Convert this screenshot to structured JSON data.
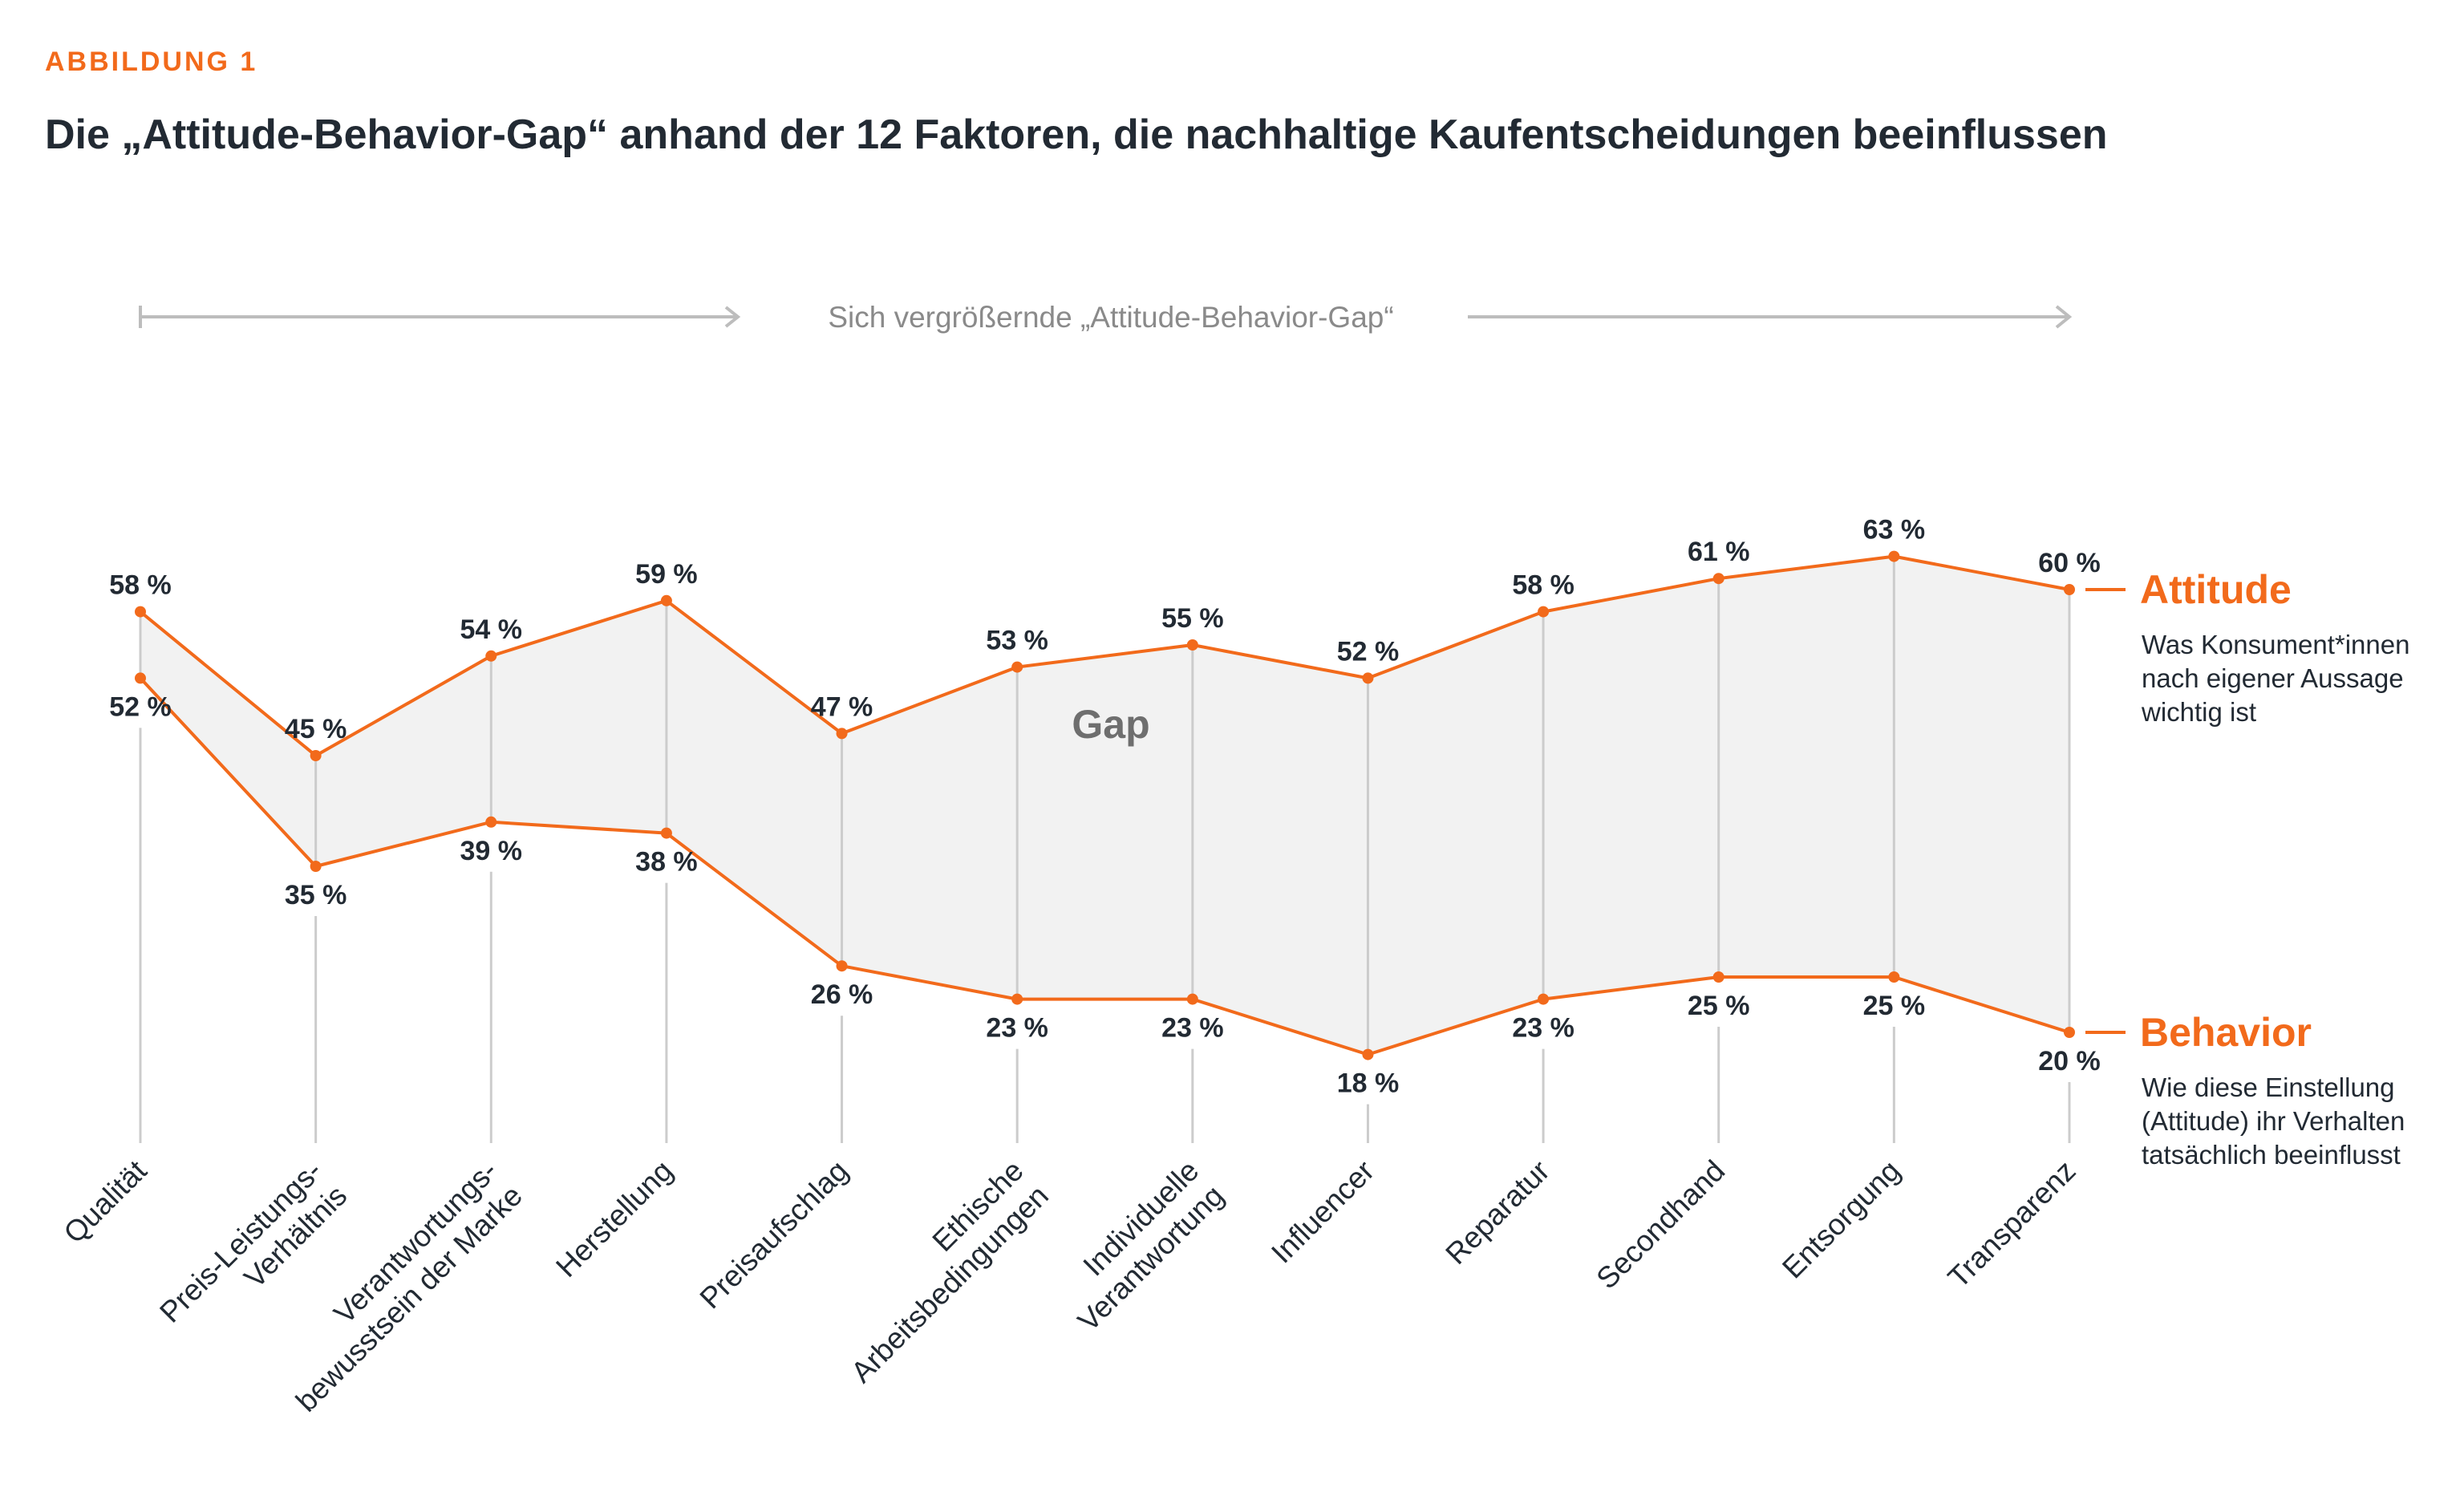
{
  "header": {
    "kicker": "ABBILDUNG 1",
    "title": "Die „Attitude-Behavior-Gap“ anhand der 12 Faktoren, die nachhaltige Kaufentscheidungen beeinflussen"
  },
  "annotation": {
    "arrow_label": "Sich vergrößernde „Attitude-Behavior-Gap“",
    "gap_label": "Gap"
  },
  "legend": {
    "attitude": {
      "title": "Attitude",
      "description": [
        "Was Konsument*innen",
        "nach eigener Aussage",
        "wichtig ist"
      ]
    },
    "behavior": {
      "title": "Behavior",
      "description": [
        "Wie diese Einstellung",
        "(Attitude) ihr Verhalten",
        "tatsächlich beeinflusst"
      ]
    }
  },
  "colors": {
    "accent": "#f26a1b",
    "text": "#222a33",
    "gap_fill": "#f2f2f2",
    "gridline": "#cccccc",
    "gap_label": "#6e6e6e"
  },
  "chart_data": {
    "type": "line",
    "categories": [
      [
        "Qualität"
      ],
      [
        "Preis-Leistungs-",
        "Verhältnis"
      ],
      [
        "Verantwortungs-",
        "bewusstsein der Marke"
      ],
      [
        "Herstellung"
      ],
      [
        "Preisaufschlag"
      ],
      [
        "Ethische",
        "Arbeitsbedingungen"
      ],
      [
        "Individuelle",
        "Verantwortung"
      ],
      [
        "Influencer"
      ],
      [
        "Reparatur"
      ],
      [
        "Secondhand"
      ],
      [
        "Entsorgung"
      ],
      [
        "Transparenz"
      ]
    ],
    "series": [
      {
        "name": "Attitude",
        "values": [
          58,
          45,
          54,
          59,
          47,
          53,
          55,
          52,
          58,
          61,
          63,
          60
        ],
        "labels": [
          "58 %",
          "45 %",
          "54 %",
          "59 %",
          "47 %",
          "53 %",
          "55 %",
          "52 %",
          "58 %",
          "61 %",
          "63 %",
          "60 %"
        ]
      },
      {
        "name": "Behavior",
        "values": [
          52,
          35,
          39,
          38,
          26,
          23,
          23,
          18,
          23,
          25,
          25,
          20
        ],
        "labels": [
          "52 %",
          "35 %",
          "39 %",
          "38 %",
          "26 %",
          "23 %",
          "23 %",
          "18 %",
          "23 %",
          "25 %",
          "25 %",
          "20 %"
        ]
      }
    ],
    "ylabel": "",
    "xlabel": "",
    "grid": true,
    "legend_position": "right"
  }
}
